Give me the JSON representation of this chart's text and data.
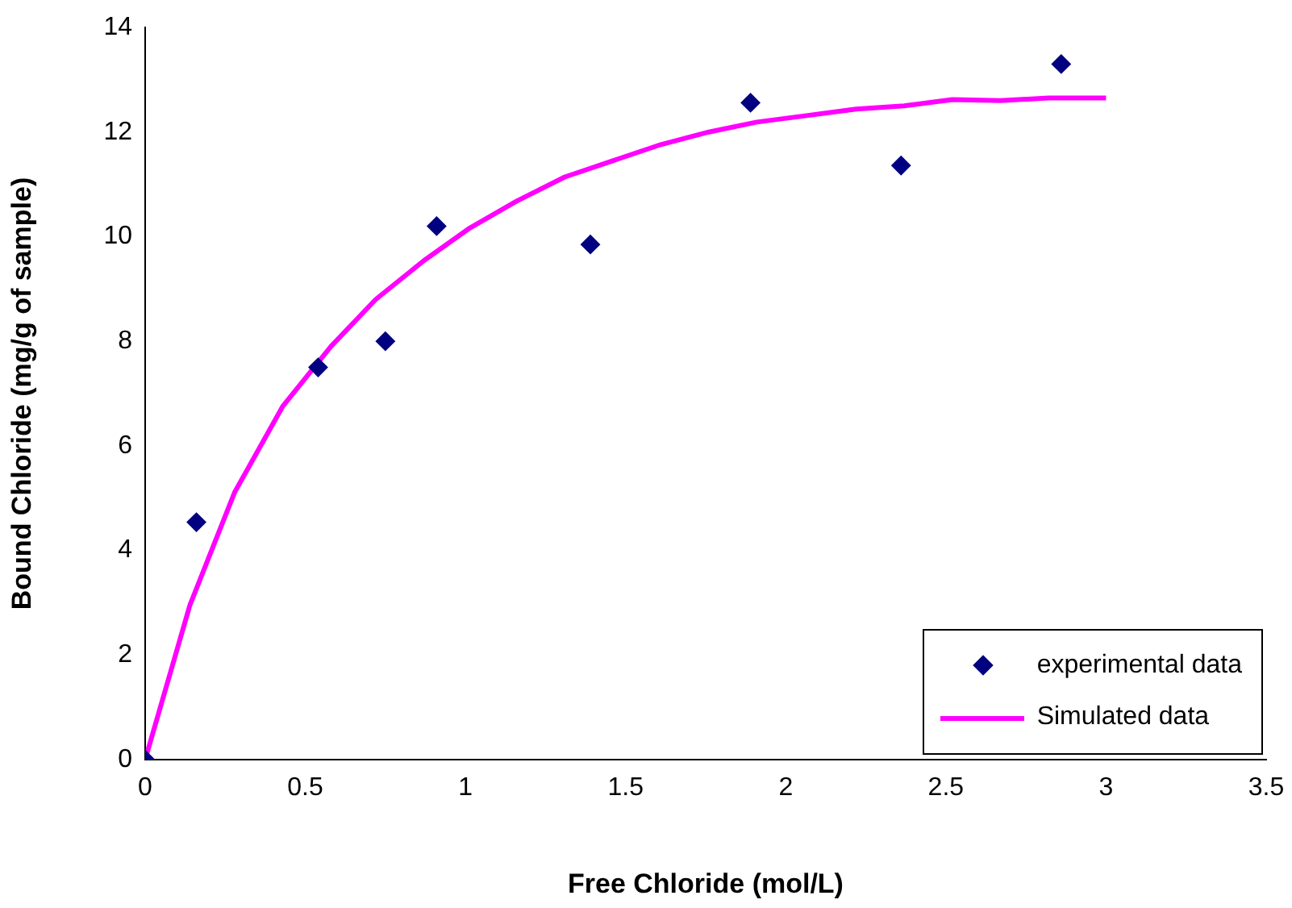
{
  "chart_data": {
    "type": "scatter",
    "xlabel": "Free Chloride (mol/L)",
    "ylabel": "Bound Chloride (mg/g of sample)",
    "xlim": [
      0,
      3.5
    ],
    "xticks": [
      0,
      0.5,
      1,
      1.5,
      2,
      2.5,
      3,
      3.5
    ],
    "ylim": [
      0,
      14
    ],
    "yticks": [
      0,
      2,
      4,
      6,
      8,
      10,
      12,
      14
    ],
    "grid": false,
    "legend": "bottom right",
    "series": [
      {
        "name": "experimental data",
        "type": "scatter",
        "marker": "diamond",
        "color": "#000080",
        "x": [
          0,
          0.16,
          0.54,
          0.75,
          0.91,
          1.39,
          1.89,
          2.36,
          2.86
        ],
        "values": [
          0,
          4.54,
          7.5,
          8.0,
          10.2,
          9.85,
          12.56,
          11.36,
          13.3
        ]
      },
      {
        "name": "Simulated data",
        "type": "line",
        "marker": "none",
        "color": "#ff00ff",
        "x": [
          0,
          0.14,
          0.28,
          0.43,
          0.58,
          0.72,
          0.87,
          1.01,
          1.16,
          1.31,
          1.46,
          1.61,
          1.76,
          1.91,
          2.06,
          2.22,
          2.37,
          2.52,
          2.67,
          2.82,
          3.0
        ],
        "values": [
          0,
          2.96,
          5.12,
          6.76,
          7.9,
          8.8,
          9.54,
          10.15,
          10.68,
          11.14,
          11.45,
          11.76,
          12.0,
          12.19,
          12.31,
          12.44,
          12.5,
          12.62,
          12.6,
          12.65,
          12.65
        ]
      }
    ]
  }
}
